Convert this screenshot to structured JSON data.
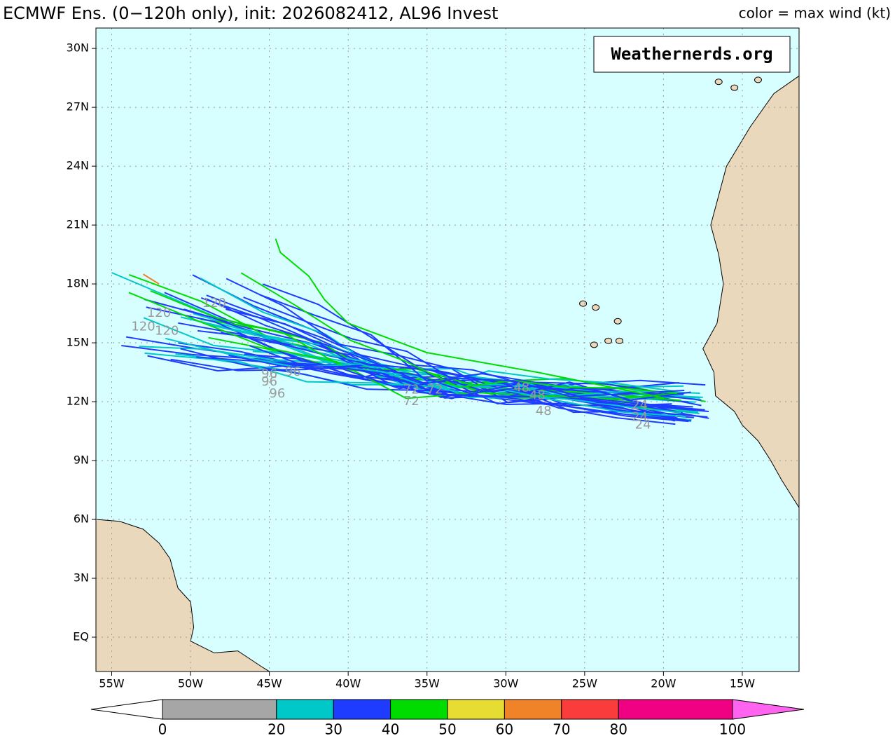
{
  "header": {
    "title": "ECMWF Ens. (0−120h only), init: 2026082412, AL96 Invest",
    "legend_note": "color = max wind (kt)"
  },
  "watermark": "Weathernerds.org",
  "map": {
    "lonlim": [
      -56,
      -11.4
    ],
    "latlim": [
      -1.75,
      31.04
    ],
    "lon_ticks": [
      {
        "value": -55,
        "label": "55W"
      },
      {
        "value": -50,
        "label": "50W"
      },
      {
        "value": -45,
        "label": "45W"
      },
      {
        "value": -40,
        "label": "40W"
      },
      {
        "value": -35,
        "label": "35W"
      },
      {
        "value": -30,
        "label": "30W"
      },
      {
        "value": -25,
        "label": "25W"
      },
      {
        "value": -20,
        "label": "20W"
      },
      {
        "value": -15,
        "label": "15W"
      }
    ],
    "lat_ticks": [
      {
        "value": 0,
        "label": "EQ"
      },
      {
        "value": 3,
        "label": "3N"
      },
      {
        "value": 6,
        "label": "6N"
      },
      {
        "value": 9,
        "label": "9N"
      },
      {
        "value": 12,
        "label": "12N"
      },
      {
        "value": 15,
        "label": "15N"
      },
      {
        "value": 18,
        "label": "18N"
      },
      {
        "value": 21,
        "label": "21N"
      },
      {
        "value": 24,
        "label": "24N"
      },
      {
        "value": 27,
        "label": "27N"
      },
      {
        "value": 30,
        "label": "30N"
      }
    ],
    "hour_labels": [
      "24",
      "48",
      "72",
      "96",
      "120"
    ]
  },
  "colorbar": {
    "levels": [
      0,
      20,
      30,
      40,
      50,
      60,
      70,
      80,
      100
    ],
    "colors": [
      "#a6a6a6",
      "#00c8c8",
      "#1e3cff",
      "#00dc00",
      "#e6dc32",
      "#f08228",
      "#fa3c3c",
      "#f00082"
    ],
    "under_color": "#ffffff",
    "over_color": "#ff64f0"
  }
}
